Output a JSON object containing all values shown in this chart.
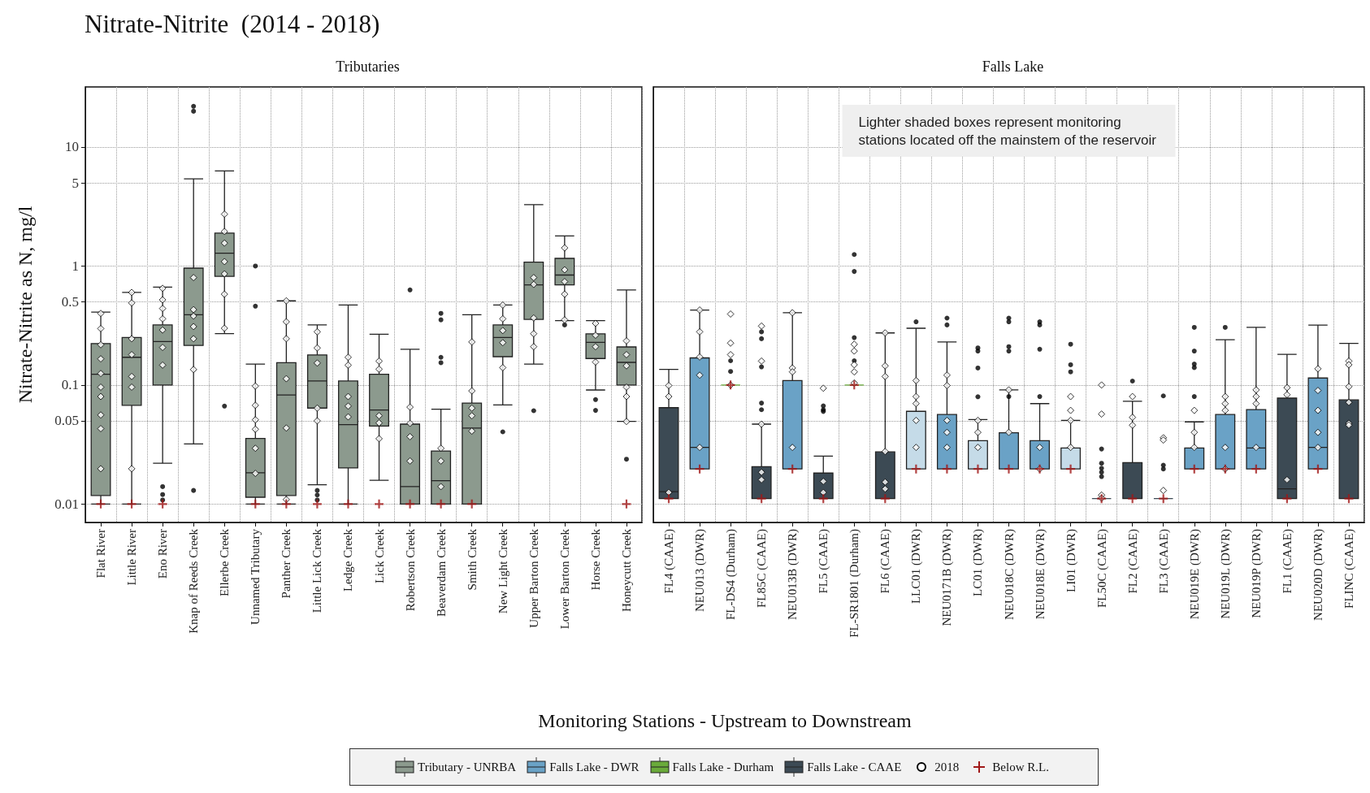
{
  "chart_data": [
    {
      "type": "box",
      "title": "Nitrate-Nitrite  (2014 - 2018)",
      "subtitle": "Tributaries",
      "xlabel": "Monitoring Stations - Upstream to Downstream",
      "ylabel": "Nitrate-Nitrite as N, mg/l",
      "log": true,
      "grid": true,
      "legend": "bottom",
      "ylim": [
        0.007,
        32
      ],
      "yticks": [
        0.01,
        0.05,
        0.1,
        0.5,
        1,
        5,
        10
      ],
      "categories": [
        "Flat River",
        "Little River",
        "Eno River",
        "Knap of Reeds Creek",
        "Ellerbe Creek",
        "Unnamed Tributary",
        "Panther Creek",
        "Little Lick Creek",
        "Ledge Creek",
        "Lick Creek",
        "Robertson Creek",
        "Beaverdam Creek",
        "Smith Creek",
        "New Light Creek",
        "Upper Barton Creek",
        "Lower Barton Creek",
        "Horse Creek",
        "Honeycutt Creek"
      ],
      "series": [
        {
          "name": "Tributary - UNRBA",
          "color": "#8c9a8e",
          "boxes": [
            {
              "low": 0.01,
              "q1": 0.0118,
              "median": 0.123,
              "q3": 0.223,
              "high": 0.41
            },
            {
              "low": 0.01,
              "q1": 0.0675,
              "median": 0.171,
              "q3": 0.251,
              "high": 0.6
            },
            {
              "low": 0.022,
              "q1": 0.1,
              "median": 0.232,
              "q3": 0.32,
              "high": 0.665,
              "outliers": [
                0.014,
                0.012,
                0.0108
              ]
            },
            {
              "low": 0.032,
              "q1": 0.215,
              "median": 0.39,
              "q3": 0.96,
              "high": 5.4,
              "outliers": [
                22,
                20,
                0.013
              ]
            },
            {
              "low": 0.27,
              "q1": 0.82,
              "median": 1.28,
              "q3": 1.89,
              "high": 6.3,
              "outliers": [
                0.0665
              ]
            },
            {
              "low": 0.01,
              "q1": 0.0114,
              "median": 0.0183,
              "q3": 0.0356,
              "high": 0.15,
              "outliers": [
                1.0,
                0.46
              ]
            },
            {
              "low": 0.01,
              "q1": 0.0118,
              "median": 0.0824,
              "q3": 0.154,
              "high": 0.51
            },
            {
              "low": 0.0145,
              "q1": 0.064,
              "median": 0.108,
              "q3": 0.179,
              "high": 0.32,
              "outliers": [
                0.013,
                0.0119,
                0.0108
              ]
            },
            {
              "low": 0.01,
              "q1": 0.0201,
              "median": 0.0465,
              "q3": 0.108,
              "high": 0.47
            },
            {
              "low": 0.0158,
              "q1": 0.0452,
              "median": 0.0617,
              "q3": 0.123,
              "high": 0.267
            },
            {
              "low": 0.01,
              "q1": 0.01,
              "median": 0.014,
              "q3": 0.0469,
              "high": 0.2,
              "outliers": [
                0.63
              ]
            },
            {
              "low": 0.01,
              "q1": 0.01,
              "median": 0.0157,
              "q3": 0.0279,
              "high": 0.0627,
              "outliers": [
                0.4,
                0.353,
                0.171,
                0.154
              ]
            },
            {
              "low": 0.01,
              "q1": 0.01,
              "median": 0.0435,
              "q3": 0.0705,
              "high": 0.39
            },
            {
              "low": 0.068,
              "q1": 0.173,
              "median": 0.251,
              "q3": 0.32,
              "high": 0.47,
              "outliers": [
                0.0404
              ]
            },
            {
              "low": 0.15,
              "q1": 0.356,
              "median": 0.695,
              "q3": 1.08,
              "high": 3.28,
              "outliers": [
                0.0608
              ]
            },
            {
              "low": 0.348,
              "q1": 0.695,
              "median": 0.84,
              "q3": 1.16,
              "high": 1.79,
              "outliers": [
                0.32
              ]
            },
            {
              "low": 0.0908,
              "q1": 0.167,
              "median": 0.228,
              "q3": 0.269,
              "high": 0.348,
              "outliers": [
                0.0754,
                0.0612
              ]
            },
            {
              "low": 0.0494,
              "q1": 0.1,
              "median": 0.155,
              "q3": 0.209,
              "high": 0.63,
              "outliers": [
                0.0238
              ]
            }
          ]
        },
        {
          "name": "2018",
          "type": "scatter",
          "marker": "diamond",
          "color": "#ffffff",
          "x": [
            "Flat River",
            "Flat River",
            "Flat River",
            "Flat River",
            "Flat River",
            "Flat River",
            "Flat River",
            "Flat River",
            "Flat River",
            "Flat River",
            "Little River",
            "Little River",
            "Little River",
            "Little River",
            "Little River",
            "Little River",
            "Little River",
            "Eno River",
            "Eno River",
            "Eno River",
            "Eno River",
            "Eno River",
            "Eno River",
            "Eno River",
            "Knap of Reeds Creek",
            "Knap of Reeds Creek",
            "Knap of Reeds Creek",
            "Knap of Reeds Creek",
            "Knap of Reeds Creek",
            "Knap of Reeds Creek",
            "Ellerbe Creek",
            "Ellerbe Creek",
            "Ellerbe Creek",
            "Ellerbe Creek",
            "Ellerbe Creek",
            "Ellerbe Creek",
            "Ellerbe Creek",
            "Unnamed Tributary",
            "Unnamed Tributary",
            "Unnamed Tributary",
            "Unnamed Tributary",
            "Unnamed Tributary",
            "Unnamed Tributary",
            "Panther Creek",
            "Panther Creek",
            "Panther Creek",
            "Panther Creek",
            "Panther Creek",
            "Panther Creek",
            "Little Lick Creek",
            "Little Lick Creek",
            "Little Lick Creek",
            "Little Lick Creek",
            "Little Lick Creek",
            "Ledge Creek",
            "Ledge Creek",
            "Ledge Creek",
            "Ledge Creek",
            "Ledge Creek",
            "Lick Creek",
            "Lick Creek",
            "Lick Creek",
            "Lick Creek",
            "Lick Creek",
            "Robertson Creek",
            "Robertson Creek",
            "Robertson Creek",
            "Robertson Creek",
            "Beaverdam Creek",
            "Beaverdam Creek",
            "Beaverdam Creek",
            "Smith Creek",
            "Smith Creek",
            "Smith Creek",
            "Smith Creek",
            "Smith Creek",
            "New Light Creek",
            "New Light Creek",
            "New Light Creek",
            "New Light Creek",
            "New Light Creek",
            "Upper Barton Creek",
            "Upper Barton Creek",
            "Upper Barton Creek",
            "Upper Barton Creek",
            "Upper Barton Creek",
            "Lower Barton Creek",
            "Lower Barton Creek",
            "Lower Barton Creek",
            "Lower Barton Creek",
            "Lower Barton Creek",
            "Horse Creek",
            "Horse Creek",
            "Horse Creek",
            "Horse Creek",
            "Honeycutt Creek",
            "Honeycutt Creek",
            "Honeycutt Creek",
            "Honeycutt Creek",
            "Honeycutt Creek",
            "Honeycutt Creek"
          ],
          "values": [
            0.4,
            0.298,
            0.218,
            0.166,
            0.125,
            0.096,
            0.08,
            0.056,
            0.043,
            0.0198,
            0.6,
            0.49,
            0.245,
            0.18,
            0.118,
            0.096,
            0.0198,
            0.65,
            0.52,
            0.44,
            0.36,
            0.29,
            0.207,
            0.147,
            0.8,
            0.43,
            0.38,
            0.31,
            0.245,
            0.135,
            2.73,
            1.95,
            1.56,
            1.09,
            0.86,
            0.58,
            0.3,
            0.098,
            0.0675,
            0.051,
            0.0425,
            0.0294,
            0.0181,
            0.51,
            0.34,
            0.245,
            0.113,
            0.0435,
            0.0109,
            0.28,
            0.205,
            0.153,
            0.064,
            0.05,
            0.171,
            0.147,
            0.08,
            0.0665,
            0.054,
            0.159,
            0.136,
            0.0552,
            0.048,
            0.0354,
            0.0652,
            0.0476,
            0.0368,
            0.023,
            0.0294,
            0.023,
            0.014,
            0.23,
            0.0893,
            0.064,
            0.0552,
            0.041,
            0.47,
            0.36,
            0.287,
            0.227,
            0.14,
            0.8,
            0.7,
            0.366,
            0.27,
            0.21,
            1.42,
            0.93,
            0.74,
            0.58,
            0.353,
            0.33,
            0.262,
            0.21,
            0.156,
            0.235,
            0.18,
            0.145,
            0.096,
            0.08,
            0.0494
          ]
        },
        {
          "name": "Below R.L.",
          "type": "scatter",
          "marker": "cross",
          "color": "#a01818",
          "x": [
            "Flat River",
            "Little River",
            "Eno River",
            "Unnamed Tributary",
            "Panther Creek",
            "Little Lick Creek",
            "Ledge Creek",
            "Lick Creek",
            "Robertson Creek",
            "Beaverdam Creek",
            "Smith Creek",
            "Honeycutt Creek"
          ],
          "values": [
            0.01,
            0.01,
            0.01,
            0.01,
            0.01,
            0.01,
            0.01,
            0.01,
            0.01,
            0.01,
            0.01,
            0.01
          ]
        }
      ]
    },
    {
      "type": "box",
      "subtitle": "Falls Lake",
      "log": true,
      "grid": true,
      "legend": "bottom",
      "tick_labels": "x",
      "ylim": [
        0.007,
        32
      ],
      "yticks": [
        0.01,
        0.05,
        0.1,
        0.5,
        1,
        5,
        10
      ],
      "annotations": [
        "Lighter shaded boxes represent monitoring stations located off the mainstem of the reservoir"
      ],
      "categories": [
        "FL4 (CAAE)",
        "NEU013 (DWR)",
        "FL-DS4 (Durham)",
        "FL85C (CAAE)",
        "NEU013B (DWR)",
        "FL5 (CAAE)",
        "FL-SR1801 (Durham)",
        "FL6 (CAAE)",
        "LLC01 (DWR)",
        "NEU0171B (DWR)",
        "LC01 (DWR)",
        "NEU018C (DWR)",
        "NEU018E (DWR)",
        "LI01 (DWR)",
        "FL50C (CAAE)",
        "FL2 (CAAE)",
        "FL3 (CAAE)",
        "NEU019E (DWR)",
        "NEU019L (DWR)",
        "NEU019P (DWR)",
        "FL1 (CAAE)",
        "NEU020D (DWR)",
        "FLINC (CAAE)"
      ],
      "series": [
        {
          "name": "Falls Lake - DWR",
          "color": "#6aa2c6",
          "colors": [
            null,
            "#6aa2c6",
            null,
            null,
            "#6aa2c6",
            null,
            null,
            null,
            "#c5dbe8",
            "#6aa2c6",
            "#c5dbe8",
            "#6aa2c6",
            "#6aa2c6",
            "#c5dbe8",
            null,
            null,
            null,
            "#6aa2c6",
            "#6aa2c6",
            "#6aa2c6",
            null,
            "#6aa2c6",
            null
          ],
          "boxes": [
            null,
            {
              "low": 0.0197,
              "q1": 0.0197,
              "median": 0.0299,
              "q3": 0.169,
              "high": 0.427
            },
            null,
            null,
            {
              "low": 0.0197,
              "q1": 0.0197,
              "median": 0.0197,
              "q3": 0.109,
              "high": 0.405
            },
            null,
            null,
            null,
            {
              "low": 0.0197,
              "q1": 0.0197,
              "median": 0.0197,
              "q3": 0.0601,
              "high": 0.3,
              "outliers": [
                0.34
              ]
            },
            {
              "low": 0.0197,
              "q1": 0.0197,
              "median": 0.0197,
              "q3": 0.0565,
              "high": 0.23,
              "outliers": [
                0.365,
                0.32
              ]
            },
            {
              "low": 0.0197,
              "q1": 0.0197,
              "median": 0.0197,
              "q3": 0.0341,
              "high": 0.0513,
              "outliers": [
                0.205,
                0.193,
                0.139,
                0.0797
              ]
            },
            {
              "low": 0.0197,
              "q1": 0.0197,
              "median": 0.0197,
              "q3": 0.0397,
              "high": 0.091,
              "outliers": [
                0.365,
                0.34,
                0.21,
                0.193,
                0.08
              ]
            },
            {
              "low": 0.0197,
              "q1": 0.0197,
              "median": 0.0197,
              "q3": 0.0341,
              "high": 0.0698,
              "outliers": [
                0.34,
                0.32,
                0.2,
                0.08
              ]
            },
            {
              "low": 0.0197,
              "q1": 0.0197,
              "median": 0.0197,
              "q3": 0.0296,
              "high": 0.0504,
              "outliers": [
                0.22,
                0.148,
                0.129
              ]
            },
            null,
            null,
            null,
            {
              "low": 0.0197,
              "q1": 0.0197,
              "median": 0.0197,
              "q3": 0.0296,
              "high": 0.049,
              "outliers": [
                0.305,
                0.193,
                0.15,
                0.14,
                0.08
              ]
            },
            {
              "low": 0.0197,
              "q1": 0.0197,
              "median": 0.0197,
              "q3": 0.0565,
              "high": 0.24,
              "outliers": [
                0.305
              ]
            },
            {
              "low": 0.0197,
              "q1": 0.0197,
              "median": 0.0296,
              "q3": 0.0622,
              "high": 0.305
            },
            null,
            {
              "low": 0.0197,
              "q1": 0.0197,
              "median": 0.0299,
              "q3": 0.1145,
              "high": 0.319
            },
            null
          ]
        },
        {
          "name": "Falls Lake - Durham",
          "color": "#6aaa3a",
          "boxes": [
            null,
            null,
            {
              "low": 0.1,
              "q1": 0.1,
              "median": 0.1,
              "q3": 0.1,
              "high": 0.1,
              "outliers": [
                0.16,
                0.13
              ]
            },
            null,
            null,
            null,
            {
              "low": 0.1,
              "q1": 0.1,
              "median": 0.1,
              "q3": 0.1,
              "high": 0.1,
              "outliers": [
                1.25,
                0.9,
                0.25,
                0.16
              ]
            },
            null,
            null,
            null,
            null,
            null,
            null,
            null,
            null,
            null,
            null,
            null,
            null,
            null,
            null,
            null,
            null
          ]
        },
        {
          "name": "Falls Lake - CAAE",
          "color": "#3c4a54",
          "boxes": [
            {
              "low": 0.0111,
              "q1": 0.0111,
              "median": 0.0127,
              "q3": 0.0645,
              "high": 0.1355
            },
            null,
            null,
            {
              "low": 0.0111,
              "q1": 0.0111,
              "median": 0.0111,
              "q3": 0.0206,
              "high": 0.0469,
              "outliers": [
                0.28,
                0.245,
                0.142,
                0.0705,
                0.062
              ]
            },
            null,
            {
              "low": 0.0111,
              "q1": 0.0111,
              "median": 0.0111,
              "q3": 0.0182,
              "high": 0.0253,
              "outliers": [
                0.0668,
                0.062,
                0.06
              ]
            },
            null,
            {
              "low": 0.0111,
              "q1": 0.0111,
              "median": 0.0111,
              "q3": 0.0274,
              "high": 0.274
            },
            null,
            null,
            null,
            null,
            null,
            null,
            {
              "low": 0.0111,
              "q1": 0.0111,
              "median": 0.0111,
              "q3": 0.0111,
              "high": 0.0111,
              "outliers": [
                0.029,
                0.022,
                0.02,
                0.0185,
                0.017
              ]
            },
            {
              "low": 0.0111,
              "q1": 0.0111,
              "median": 0.0111,
              "q3": 0.0223,
              "high": 0.073,
              "outliers": [
                0.108
              ]
            },
            {
              "low": 0.0111,
              "q1": 0.0111,
              "median": 0.0111,
              "q3": 0.0111,
              "high": 0.0111,
              "outliers": [
                0.081,
                0.0212,
                0.0197
              ]
            },
            null,
            null,
            null,
            {
              "low": 0.0111,
              "q1": 0.0111,
              "median": 0.0134,
              "q3": 0.0776,
              "high": 0.181
            },
            null,
            {
              "low": 0.0111,
              "q1": 0.0111,
              "median": 0.0111,
              "q3": 0.075,
              "high": 0.224
            }
          ]
        },
        {
          "name": "2018",
          "type": "scatter",
          "marker": "diamond",
          "color": "#ffffff",
          "x": [
            "FL4 (CAAE)",
            "FL4 (CAAE)",
            "FL4 (CAAE)",
            "NEU013 (DWR)",
            "NEU013 (DWR)",
            "NEU013 (DWR)",
            "NEU013 (DWR)",
            "NEU013 (DWR)",
            "FL-DS4 (Durham)",
            "FL-DS4 (Durham)",
            "FL-DS4 (Durham)",
            "FL-DS4 (Durham)",
            "FL85C (CAAE)",
            "FL85C (CAAE)",
            "FL85C (CAAE)",
            "FL85C (CAAE)",
            "FL85C (CAAE)",
            "NEU013B (DWR)",
            "NEU013B (DWR)",
            "NEU013B (DWR)",
            "NEU013B (DWR)",
            "FL5 (CAAE)",
            "FL5 (CAAE)",
            "FL5 (CAAE)",
            "FL-SR1801 (Durham)",
            "FL-SR1801 (Durham)",
            "FL-SR1801 (Durham)",
            "FL-SR1801 (Durham)",
            "FL-SR1801 (Durham)",
            "FL6 (CAAE)",
            "FL6 (CAAE)",
            "FL6 (CAAE)",
            "FL6 (CAAE)",
            "FL6 (CAAE)",
            "FL6 (CAAE)",
            "LLC01 (DWR)",
            "LLC01 (DWR)",
            "LLC01 (DWR)",
            "LLC01 (DWR)",
            "LLC01 (DWR)",
            "NEU0171B (DWR)",
            "NEU0171B (DWR)",
            "NEU0171B (DWR)",
            "NEU0171B (DWR)",
            "NEU0171B (DWR)",
            "LC01 (DWR)",
            "LC01 (DWR)",
            "LC01 (DWR)",
            "NEU018C (DWR)",
            "NEU018C (DWR)",
            "NEU018E (DWR)",
            "NEU018E (DWR)",
            "LI01 (DWR)",
            "LI01 (DWR)",
            "LI01 (DWR)",
            "LI01 (DWR)",
            "FL50C (CAAE)",
            "FL50C (CAAE)",
            "FL50C (CAAE)",
            "FL50C (CAAE)",
            "FL2 (CAAE)",
            "FL2 (CAAE)",
            "FL2 (CAAE)",
            "FL3 (CAAE)",
            "FL3 (CAAE)",
            "FL3 (CAAE)",
            "NEU019E (DWR)",
            "NEU019E (DWR)",
            "NEU019E (DWR)",
            "NEU019L (DWR)",
            "NEU019L (DWR)",
            "NEU019L (DWR)",
            "NEU019L (DWR)",
            "NEU019L (DWR)",
            "NEU019P (DWR)",
            "NEU019P (DWR)",
            "NEU019P (DWR)",
            "NEU019P (DWR)",
            "FL1 (CAAE)",
            "FL1 (CAAE)",
            "FL1 (CAAE)",
            "NEU020D (DWR)",
            "NEU020D (DWR)",
            "NEU020D (DWR)",
            "NEU020D (DWR)",
            "NEU020D (DWR)",
            "FLINC (CAAE)",
            "FLINC (CAAE)",
            "FLINC (CAAE)",
            "FLINC (CAAE)",
            "FLINC (CAAE)",
            "FLINC (CAAE)"
          ],
          "values": [
            0.099,
            0.08,
            0.0125,
            0.427,
            0.28,
            0.172,
            0.121,
            0.0299,
            0.395,
            0.225,
            0.18,
            0.1,
            0.313,
            0.159,
            0.0469,
            0.0185,
            0.016,
            0.405,
            0.139,
            0.129,
            0.0299,
            0.094,
            0.0155,
            0.0125,
            0.22,
            0.193,
            0.148,
            0.129,
            0.104,
            0.274,
            0.145,
            0.118,
            0.0276,
            0.0153,
            0.0134,
            0.109,
            0.08,
            0.0698,
            0.0504,
            0.0299,
            0.121,
            0.099,
            0.0504,
            0.04,
            0.0299,
            0.0504,
            0.04,
            0.0299,
            0.091,
            0.04,
            0.0299,
            0.0197,
            0.08,
            0.0612,
            0.0504,
            0.0299,
            0.1,
            0.057,
            0.0119,
            0.0112,
            0.08,
            0.0535,
            0.046,
            0.036,
            0.0345,
            0.013,
            0.0612,
            0.04,
            0.0299,
            0.08,
            0.0698,
            0.0612,
            0.0299,
            0.0197,
            0.091,
            0.08,
            0.0698,
            0.0299,
            0.095,
            0.083,
            0.016,
            0.137,
            0.09,
            0.0612,
            0.04,
            0.0299,
            0.159,
            0.148,
            0.097,
            0.0715,
            0.0477,
            0.046
          ]
        },
        {
          "name": "Below R.L.",
          "type": "scatter",
          "marker": "cross",
          "color": "#a01818",
          "x": [
            "FL4 (CAAE)",
            "NEU013 (DWR)",
            "FL-DS4 (Durham)",
            "FL85C (CAAE)",
            "NEU013B (DWR)",
            "FL5 (CAAE)",
            "FL-SR1801 (Durham)",
            "FL6 (CAAE)",
            "LLC01 (DWR)",
            "NEU0171B (DWR)",
            "LC01 (DWR)",
            "NEU018C (DWR)",
            "NEU018E (DWR)",
            "LI01 (DWR)",
            "FL50C (CAAE)",
            "FL2 (CAAE)",
            "FL3 (CAAE)",
            "NEU019E (DWR)",
            "NEU019L (DWR)",
            "NEU019P (DWR)",
            "FL1 (CAAE)",
            "NEU020D (DWR)",
            "FLINC (CAAE)"
          ],
          "values": [
            0.0111,
            0.0197,
            0.1,
            0.0111,
            0.0197,
            0.0111,
            0.1,
            0.0111,
            0.0197,
            0.0197,
            0.0197,
            0.0197,
            0.0197,
            0.0197,
            0.0111,
            0.0111,
            0.0111,
            0.0197,
            0.0197,
            0.0197,
            0.0111,
            0.0197,
            0.0111
          ]
        }
      ]
    }
  ]
}
